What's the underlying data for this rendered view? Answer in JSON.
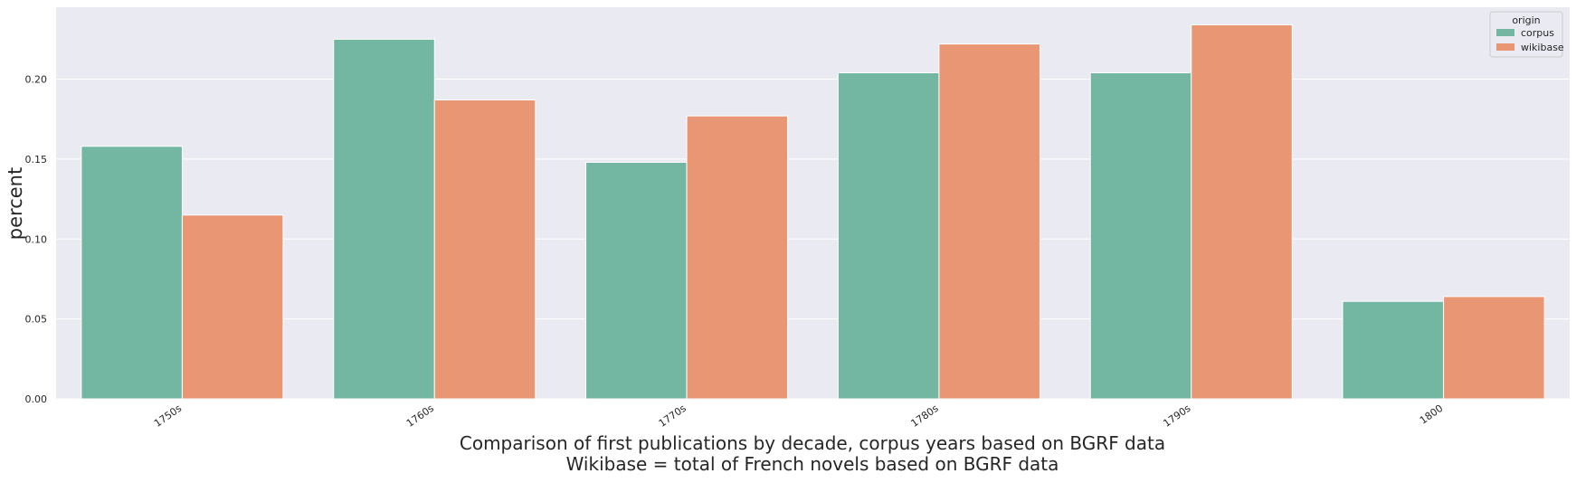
{
  "chart_data": {
    "type": "bar",
    "categories": [
      "1750s",
      "1760s",
      "1770s",
      "1780s",
      "1790s",
      "1800"
    ],
    "series": [
      {
        "name": "corpus",
        "values": [
          0.158,
          0.225,
          0.148,
          0.204,
          0.204,
          0.061
        ],
        "color": "#73b6a1"
      },
      {
        "name": "wikibase",
        "values": [
          0.115,
          0.187,
          0.177,
          0.222,
          0.234,
          0.064
        ],
        "color": "#e99675"
      }
    ],
    "xlabel": "Comparison of first publications by decade, corpus years based on BGRF data\nWikibase = total of French novels based on BGRF data",
    "xlabel_lines": [
      "Comparison of first publications by decade, corpus years based on BGRF data",
      "Wikibase = total of French novels based on BGRF data"
    ],
    "ylabel": "percent",
    "ylim": [
      0,
      0.245
    ],
    "yticks": [
      "0.00",
      "0.05",
      "0.10",
      "0.15",
      "0.20"
    ],
    "legend": {
      "title": "origin",
      "placement": "top-right"
    },
    "grid": true,
    "background_color": "#eaeaf2",
    "grid_color": "#ffffff"
  }
}
